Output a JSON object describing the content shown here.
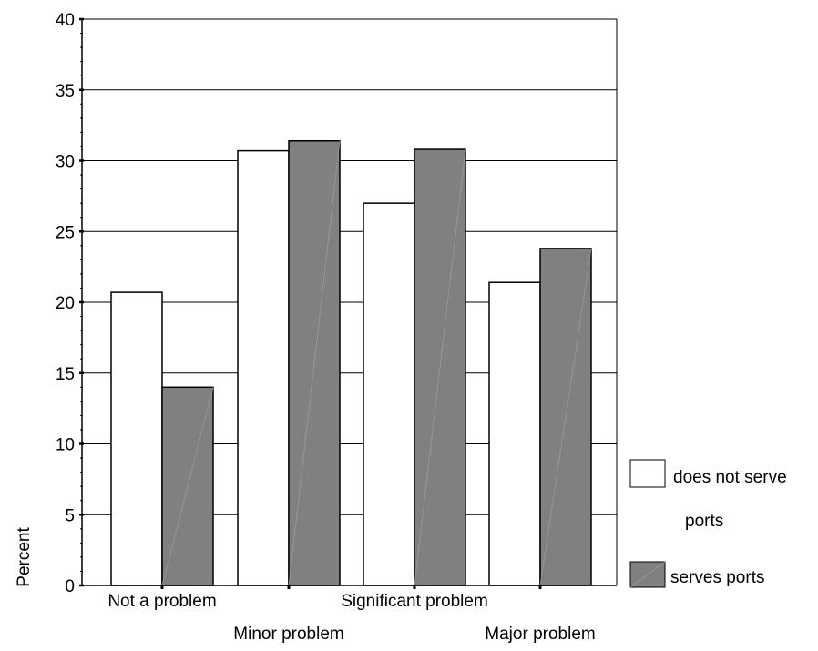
{
  "chart_data": {
    "type": "bar",
    "title": "",
    "xlabel": "",
    "ylabel": "Percent",
    "ylim": [
      0,
      40
    ],
    "yticks": [
      0,
      5,
      10,
      15,
      20,
      25,
      30,
      35,
      40
    ],
    "grid": true,
    "legend_position": "right",
    "categories": [
      "Not a problem",
      "Minor problem",
      "Significant problem",
      "Major problem"
    ],
    "series": [
      {
        "name": "does not serve ports",
        "values": [
          20.7,
          30.7,
          27.0,
          21.4
        ],
        "color": "#ffffff"
      },
      {
        "name": "serves ports",
        "values": [
          14.0,
          31.4,
          30.8,
          23.8
        ],
        "color": "#808080"
      }
    ],
    "legend_labels": [
      [
        "does not serve",
        "ports"
      ],
      [
        "serves ports"
      ]
    ]
  }
}
